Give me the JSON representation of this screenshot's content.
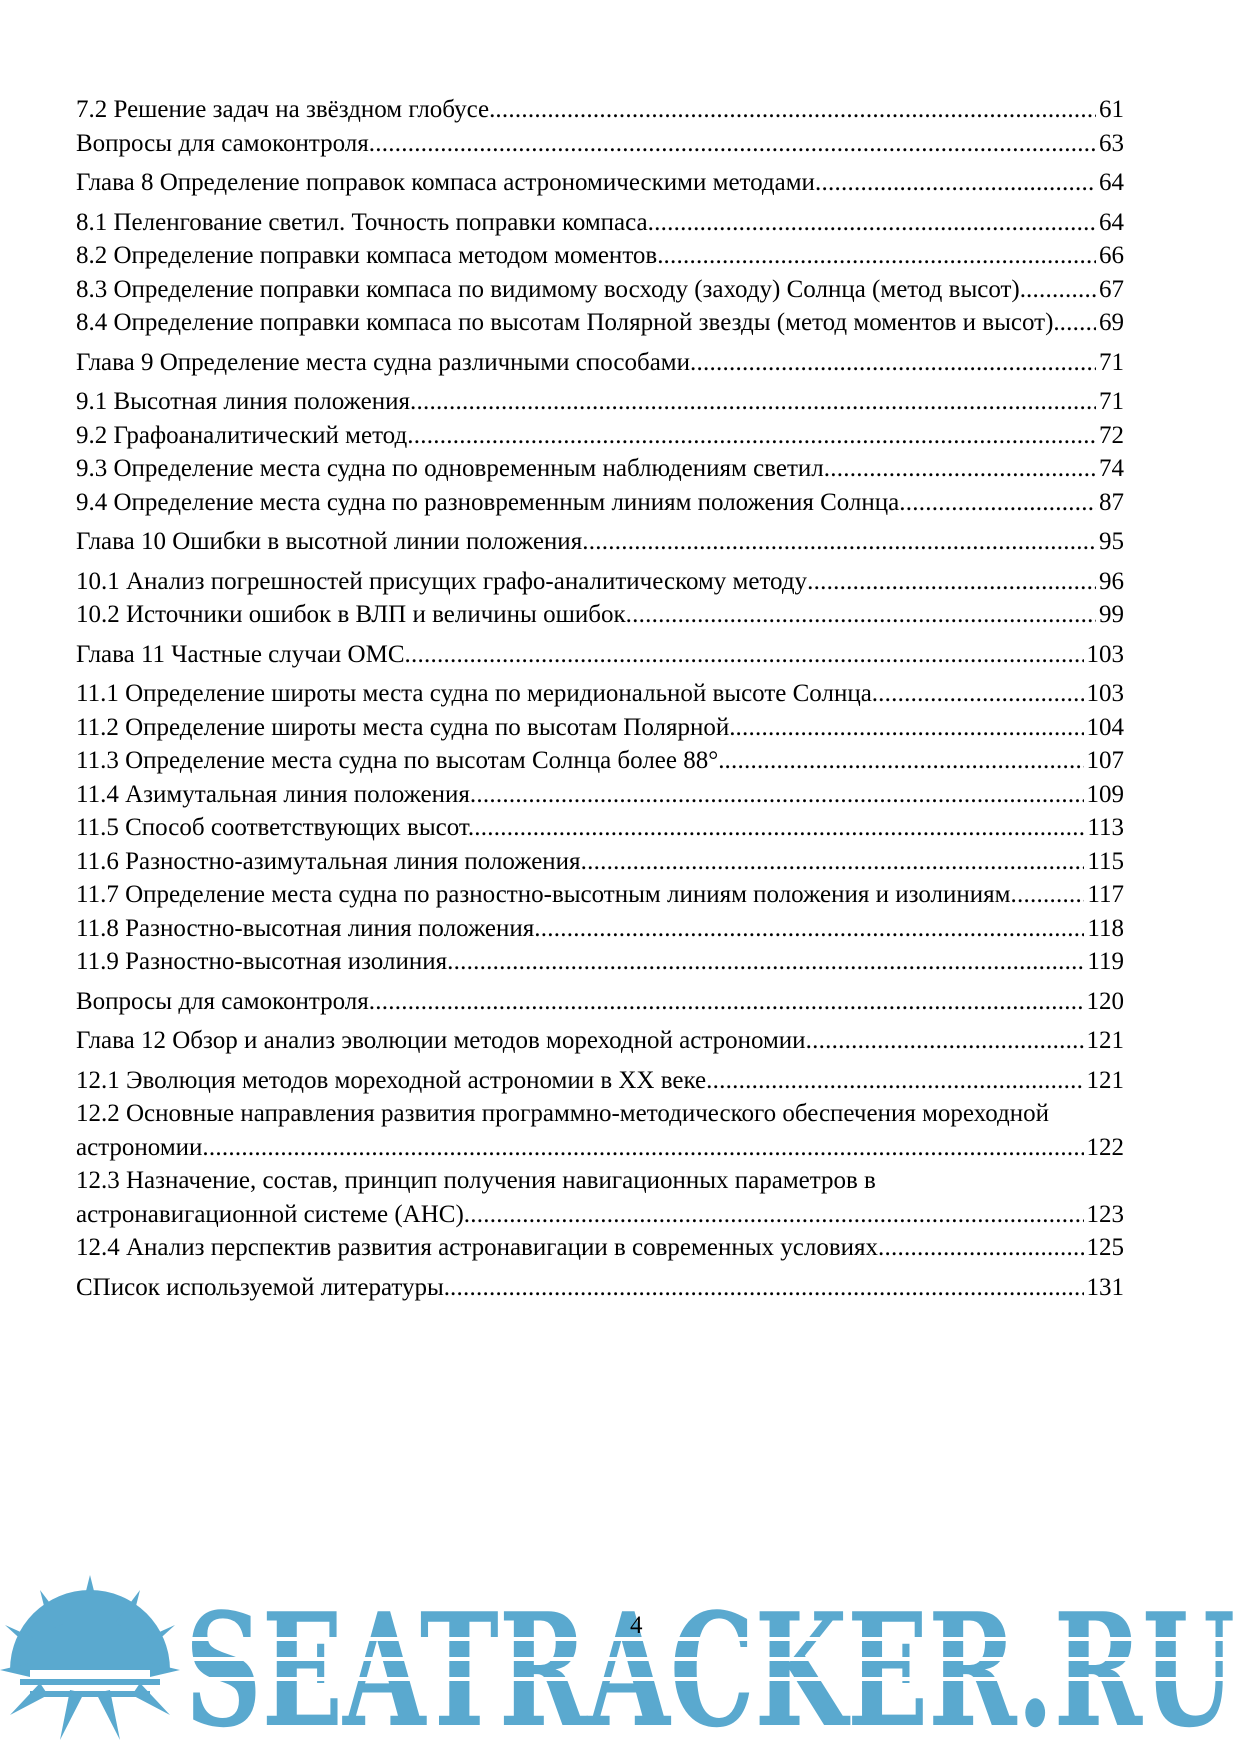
{
  "toc": [
    {
      "text": "7.2 Решение задач на звёздном глобусе.",
      "page": 61
    },
    {
      "text": "Вопросы для самоконтроля",
      "page": 63
    },
    {
      "text": "Глава 8 Определение поправок компаса астрономическими методами",
      "page": 64
    },
    {
      "text": "8.1 Пеленгование светил. Точность поправки компаса",
      "page": 64
    },
    {
      "text": "8.2 Определение поправки компаса методом моментов.",
      "page": 66
    },
    {
      "text": "8.3 Определение поправки компаса по видимому восходу (заходу) Солнца (метод высот).",
      "page": 67
    },
    {
      "text": "8.4 Определение поправки компаса по высотам Полярной звезды (метод моментов и высот).",
      "page": 69
    },
    {
      "text": "Глава 9 Определение места судна различными способами",
      "page": 71
    },
    {
      "text": "9.1 Высотная линия положения",
      "page": 71
    },
    {
      "text": "9.2 Графоаналитический метод",
      "page": 72
    },
    {
      "text": "9.3 Определение места судна по одновременным наблюдениям светил",
      "page": 74
    },
    {
      "text": "9.4 Определение места судна по разновременным линиям положения Солнца",
      "page": 87
    },
    {
      "text": "Глава 10 Ошибки в высотной линии положения",
      "page": 95
    },
    {
      "text": "10.1 Анализ погрешностей присущих графо-аналитическому методу",
      "page": 96
    },
    {
      "text": "10.2 Источники ошибок в ВЛП и величины ошибок",
      "page": 99
    },
    {
      "text": "Глава 11 Частные случаи ОМС",
      "page": 103
    },
    {
      "text": "11.1 Определение широты места судна по меридиональной высоте Солнца.",
      "page": 103
    },
    {
      "text": "11.2 Определение широты места судна по высотам Полярной.",
      "page": 104
    },
    {
      "text": "11.3 Определение места судна по высотам Солнца более 88°.",
      "page": 107
    },
    {
      "text": "11.4 Азимутальная линия положения",
      "page": 109
    },
    {
      "text": "11.5 Способ соответствующих высот.",
      "page": 113
    },
    {
      "text": "11.6 Разностно-азимутальная линия положения",
      "page": 115
    },
    {
      "text": "11.7 Определение места судна по разностно-высотным линиям положения и изолиниям",
      "page": 117
    },
    {
      "text": "11.8 Разностно-высотная линия положения",
      "page": 118
    },
    {
      "text": "11.9 Разностно-высотная изолиния",
      "page": 119
    },
    {
      "text": "Вопросы для самоконтроля",
      "page": 120
    },
    {
      "text": "Глава 12 Обзор и анализ эволюции методов мореходной астрономии",
      "page": 121
    },
    {
      "text": "12.1 Эволюция методов мореходной астрономии в XX веке",
      "page": 121
    },
    {
      "text": "12.2 Основные направления развития программно-методического обеспечения мореходной астрономии",
      "page": 122
    },
    {
      "text": "12.3 Назначение, состав, принцип получения навигационных параметров в астронавигационной системе (АНС)",
      "page": 123
    },
    {
      "text": "12.4 Анализ перспектив развития астронавигации в современных условиях",
      "page": 125
    },
    {
      "text": "СПисок используемой литературы.",
      "page": 131
    }
  ],
  "page_number": "4",
  "watermark": "SEATRACKER.RU"
}
